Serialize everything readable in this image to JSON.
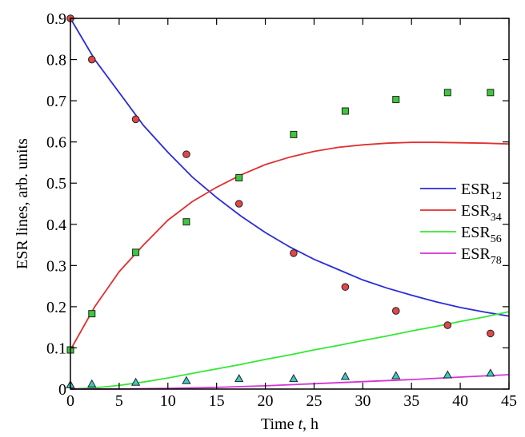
{
  "chart_data": {
    "type": "line",
    "xlabel_prefix": "Time ",
    "xlabel_var": "t",
    "xlabel_suffix": ", h",
    "ylabel": "ESR lines, arb. units",
    "xlim": [
      0,
      45
    ],
    "ylim": [
      0,
      0.9
    ],
    "x_ticks": [
      0,
      5,
      10,
      15,
      20,
      25,
      30,
      35,
      40,
      45
    ],
    "y_ticks": [
      "0",
      "0.1",
      "0.2",
      "0.3",
      "0.4",
      "0.5",
      "0.6",
      "0.7",
      "0.8",
      "0.9"
    ],
    "grid": false,
    "legend_position": "right",
    "series": [
      {
        "name": "ESR",
        "subscript": "12",
        "color": "#2b2bd9",
        "marker": "circle",
        "marker_color": "#e04848",
        "curve_x": [
          0,
          2.5,
          5,
          7.5,
          10,
          12.5,
          15,
          17.5,
          20,
          22.5,
          25,
          27.5,
          30,
          32.5,
          35,
          37.5,
          40,
          42.5,
          45
        ],
        "curve_y": [
          0.9,
          0.8,
          0.72,
          0.64,
          0.575,
          0.515,
          0.465,
          0.42,
          0.38,
          0.345,
          0.315,
          0.29,
          0.265,
          0.245,
          0.228,
          0.212,
          0.198,
          0.187,
          0.177
        ],
        "points_x": [
          0,
          2.2,
          6.7,
          11.9,
          17.3,
          22.9,
          28.2,
          33.4,
          38.7,
          43.1
        ],
        "points_y": [
          0.9,
          0.8,
          0.655,
          0.57,
          0.45,
          0.33,
          0.248,
          0.19,
          0.155,
          0.135
        ]
      },
      {
        "name": "ESR",
        "subscript": "34",
        "color": "#e03030",
        "marker": "square",
        "marker_color": "#3cc83c",
        "curve_x": [
          0,
          2.5,
          5,
          7.5,
          10,
          12.5,
          15,
          17.5,
          20,
          22.5,
          25,
          27.5,
          30,
          32.5,
          35,
          37.5,
          40,
          42.5,
          45
        ],
        "curve_y": [
          0.095,
          0.2,
          0.285,
          0.35,
          0.41,
          0.455,
          0.49,
          0.52,
          0.545,
          0.563,
          0.577,
          0.587,
          0.593,
          0.597,
          0.599,
          0.599,
          0.598,
          0.597,
          0.595
        ],
        "points_x": [
          0,
          2.2,
          6.7,
          11.9,
          17.3,
          22.9,
          28.2,
          33.4,
          38.7,
          43.1
        ],
        "points_y": [
          0.095,
          0.183,
          0.332,
          0.406,
          0.513,
          0.618,
          0.675,
          0.703,
          0.72,
          0.72
        ]
      },
      {
        "name": "ESR",
        "subscript": "56",
        "color": "#33e833",
        "marker": "triangle",
        "marker_color": "#3cc8c8",
        "curve_x": [
          0,
          2.5,
          5,
          7.5,
          10,
          12.5,
          15,
          17.5,
          20,
          22.5,
          25,
          27.5,
          30,
          32.5,
          35,
          37.5,
          40,
          42.5,
          45
        ],
        "curve_y": [
          0,
          0.003,
          0.009,
          0.017,
          0.027,
          0.038,
          0.049,
          0.06,
          0.072,
          0.083,
          0.095,
          0.106,
          0.118,
          0.129,
          0.141,
          0.152,
          0.164,
          0.175,
          0.188
        ],
        "points_x": [
          0,
          2.2,
          6.7,
          11.9,
          17.3,
          22.9,
          28.2,
          33.4,
          38.7,
          43.1
        ],
        "points_y": [
          0.01,
          0.012,
          0.016,
          0.02,
          0.025,
          0.025,
          0.03,
          0.032,
          0.034,
          0.038
        ]
      },
      {
        "name": "ESR",
        "subscript": "78",
        "color": "#d633d6",
        "curve_x": [
          0,
          5,
          10,
          15,
          20,
          25,
          30,
          35,
          40,
          45
        ],
        "curve_y": [
          0,
          0.0002,
          0.0015,
          0.004,
          0.008,
          0.013,
          0.018,
          0.023,
          0.029,
          0.035
        ]
      }
    ]
  }
}
